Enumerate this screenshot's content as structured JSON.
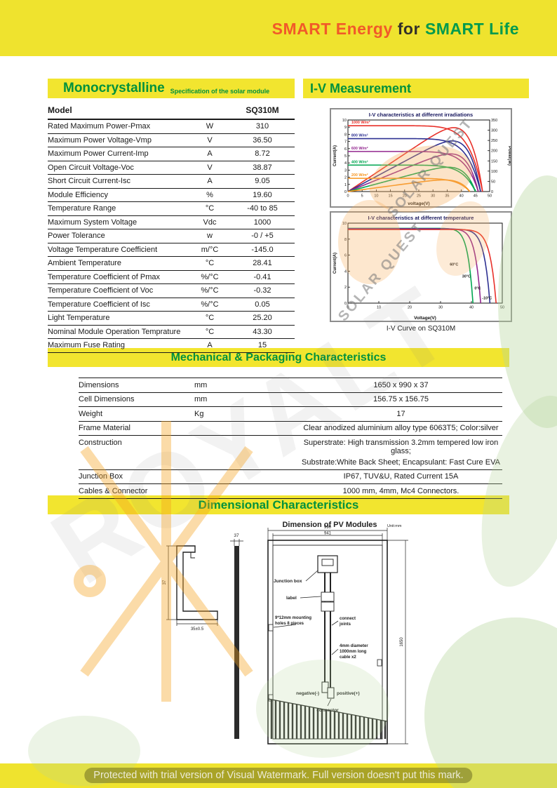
{
  "banner": {
    "part1": "SMART Energy",
    "part2": "for",
    "part3": "SMART Life"
  },
  "sections": {
    "mono_title": "Monocrystalline",
    "mono_subtitle": "Specification of the solar module",
    "iv_title": "I-V Measurement",
    "iv_caption": "I-V Curve on SQ310M",
    "mech_title": "Mechanical & Packaging Characteristics",
    "dim_title": "Dimensional Characteristics"
  },
  "spec_table": {
    "header": {
      "model_label": "Model",
      "model_value": "SQ310M"
    },
    "rows": [
      {
        "label": "Rated Maximum Power-Pmax",
        "unit": "W",
        "value": "310"
      },
      {
        "label": "Maximum Power Voltage-Vmp",
        "unit": "V",
        "value": "36.50"
      },
      {
        "label": "Maximum Power Current-Imp",
        "unit": "A",
        "value": "8.72"
      },
      {
        "label": "Open Circuit Voltage-Voc",
        "unit": "V",
        "value": "38.87"
      },
      {
        "label": "Short Circuit Current-Isc",
        "unit": "A",
        "value": "9.05"
      },
      {
        "label": "Module Efficiency",
        "unit": "%",
        "value": "19.60"
      },
      {
        "label": "Temperature Range",
        "unit": "°C",
        "value": "-40 to 85"
      },
      {
        "label": "Maximum System Voltage",
        "unit": "Vdc",
        "value": "1000"
      },
      {
        "label": "Power Tolerance",
        "unit": "w",
        "value": "-0 / +5"
      },
      {
        "label": "Voltage Temperature Coefficient",
        "unit": "m/°C",
        "value": "-145.0"
      },
      {
        "label": "Ambient Temperature",
        "unit": "°C",
        "value": "28.41"
      },
      {
        "label": "Temperature Coefficient of Pmax",
        "unit": "%/°C",
        "value": "-0.41"
      },
      {
        "label": "Temperature Coefficient of Voc",
        "unit": "%/°C",
        "value": "-0.32"
      },
      {
        "label": "Temperature Coefficient of Isc",
        "unit": "%/°C",
        "value": "0.05"
      },
      {
        "label": "Light Temperature",
        "unit": "°C",
        "value": "25.20"
      },
      {
        "label": "Nominal Module Operation Temprature",
        "unit": "°C",
        "value": "43.30"
      },
      {
        "label": "Maximum Fuse Rating",
        "unit": "A",
        "value": "15"
      }
    ]
  },
  "chart_data": [
    {
      "type": "line",
      "title": "I-V characteristics at different irradiations",
      "xlabel": "voltage(V)",
      "ylabel": "Current(A)",
      "y2label": "Power(W)",
      "xlim": [
        0,
        50
      ],
      "xstep": 5,
      "ylim": [
        0,
        10
      ],
      "ystep": 1,
      "y2lim": [
        0,
        350
      ],
      "y2step": 50,
      "grid": false,
      "knee": 10,
      "series": [
        {
          "name": "1000 W/m²",
          "color": "#e8312a",
          "isc": 9.2,
          "voc": 47.5
        },
        {
          "name": "800 W/m²",
          "color": "#2e3192",
          "isc": 7.4,
          "voc": 46.8
        },
        {
          "name": "600 W/m²",
          "color": "#92278f",
          "isc": 5.6,
          "voc": 46.0
        },
        {
          "name": "400 W/m²",
          "color": "#00a651",
          "isc": 3.7,
          "voc": 45.0
        },
        {
          "name": "200 W/m²",
          "color": "#f7941d",
          "isc": 1.85,
          "voc": 43.0
        }
      ]
    },
    {
      "type": "line",
      "title": "I-V characteristics at different temperature",
      "xlabel": "Voltage(V)",
      "ylabel": "Current(A)",
      "xlim": [
        0,
        50
      ],
      "xstep": 10,
      "ylim": [
        0,
        10
      ],
      "ystep": 2,
      "grid": false,
      "knee": 24,
      "series": [
        {
          "name": "60°C",
          "color": "#00a651",
          "isc": 9.35,
          "voc": 40.5,
          "label_at": [
            33.0,
            4.7
          ]
        },
        {
          "name": "30°C",
          "color": "#92278f",
          "isc": 9.3,
          "voc": 43.0,
          "label_at": [
            37.0,
            3.2
          ]
        },
        {
          "name": "0°C",
          "color": "#2e3192",
          "isc": 9.25,
          "voc": 46.0,
          "label_at": [
            41.0,
            1.7
          ]
        },
        {
          "name": "-10°C",
          "color": "#e8312a",
          "isc": 9.2,
          "voc": 48.0,
          "label_at": [
            43.5,
            0.5
          ]
        }
      ]
    }
  ],
  "mech_table": {
    "rows": [
      {
        "label": "Dimensions",
        "unit": "mm",
        "value": "1650 x 990 x 37"
      },
      {
        "label": "Cell Dimensions",
        "unit": "mm",
        "value": "156.75 x 156.75"
      },
      {
        "label": "Weight",
        "unit": "Kg",
        "value": "17"
      },
      {
        "label": "Frame Material",
        "unit": "",
        "value": "Clear anodized aluminium alloy type 6063T5;  Color:silver"
      },
      {
        "label": "Construction",
        "unit": "",
        "value": "Superstrate: High transmission 3.2mm tempered low iron glass;",
        "value2": "Substrate:White Back Sheet; Encapsulant: Fast Cure EVA"
      },
      {
        "label": "Junction Box",
        "unit": "",
        "value": "IP67, TUV&U, Rated Current 15A"
      },
      {
        "label": "Cables & Connector",
        "unit": "",
        "value": "1000 mm, 4mm, Mc4 Connectors."
      }
    ]
  },
  "drawing": {
    "title": "Dimension of PV Modules",
    "unit_note": "Unit:mm",
    "dim_width_outer": "990",
    "dim_width_inner": "941",
    "dim_height": "1650",
    "dim_thickness": "37",
    "dim_frame_height": "37",
    "dim_frame_foot": "35±0.5",
    "junction_box": "Junction box",
    "cable_label": "label",
    "mounting_line1": "9*12mm mounting",
    "mounting_line2": "holes 8 pieces",
    "connect_line1": "connect",
    "connect_line2": "joints",
    "cable_line1": "4mm diameter",
    "cable_line2": "1000mm long",
    "cable_line3": "cable x2",
    "negative": "negative(-)",
    "positive": "positive(+)",
    "connector": "connector"
  },
  "watermarks": {
    "solar_quest": "SOLAR QUEST",
    "royalt": "ROYALT",
    "footer": "Protected with trial version of Visual Watermark. Full version doesn't put this mark."
  },
  "colors": {
    "band_yellow": "#efe32e",
    "heading_green": "#00913d",
    "banner_orange": "#f15a29",
    "banner_green": "#009a4e"
  }
}
